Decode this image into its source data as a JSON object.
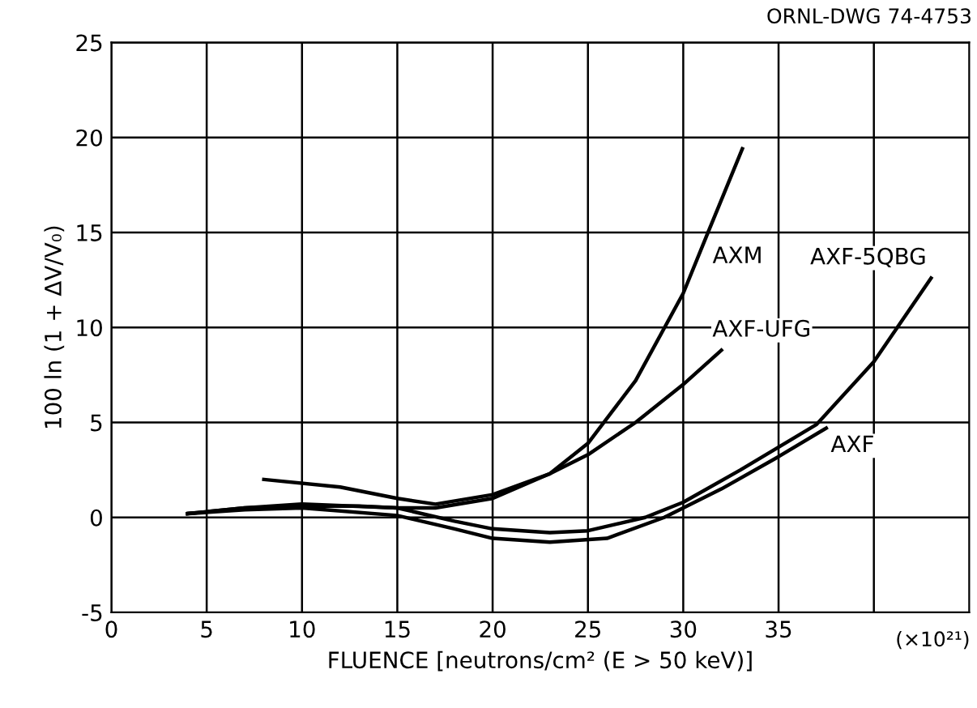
{
  "chart_data": {
    "type": "line",
    "xlabel": "FLUENCE [neutrons/cm² (E > 50 keV)]",
    "ylabel": "100 ln (1 + ΔV/V₀)",
    "xlim": [
      0,
      45
    ],
    "xticks": [
      0,
      5,
      10,
      15,
      20,
      25,
      30,
      35,
      {
        "value": 40,
        "label": null
      }
    ],
    "ylim": [
      -5,
      25
    ],
    "yticks": [
      -5,
      0,
      5,
      10,
      15,
      20,
      25
    ],
    "grid": true,
    "legend": false,
    "marker": "none",
    "line_style": "solid",
    "series": [
      {
        "color": "#000000",
        "x": [
          4,
          7,
          10,
          13,
          15,
          17,
          20,
          23,
          25,
          27.5,
          30,
          31.3,
          33.1
        ],
        "values": [
          0.2,
          0.5,
          0.6,
          0.6,
          0.5,
          0.5,
          1.0,
          2.3,
          3.9,
          7.2,
          11.8,
          15.0,
          19.4
        ]
      },
      {
        "color": "#000000",
        "x": [
          8,
          12,
          15,
          17,
          20,
          23,
          25,
          27.5,
          30,
          32
        ],
        "values": [
          2.0,
          1.6,
          1.0,
          0.7,
          1.2,
          2.3,
          3.3,
          5.0,
          7.0,
          8.8
        ]
      },
      {
        "color": "#000000",
        "x": [
          4,
          7,
          10,
          15,
          18,
          20,
          23,
          25,
          28,
          30,
          33,
          37,
          40,
          43
        ],
        "values": [
          0.2,
          0.5,
          0.7,
          0.5,
          -0.2,
          -0.6,
          -0.8,
          -0.7,
          0,
          0.8,
          2.5,
          4.9,
          8.2,
          12.6
        ]
      },
      {
        "color": "#000000",
        "x": [
          4,
          7,
          10,
          15,
          18,
          20,
          23,
          26,
          29,
          32,
          35,
          37.5
        ],
        "values": [
          0.2,
          0.4,
          0.5,
          0.1,
          -0.6,
          -1.1,
          -1.3,
          -1.1,
          0,
          1.5,
          3.2,
          4.7
        ]
      }
    ],
    "annotations": [
      {
        "text": "AXM",
        "x": 31.3,
        "y": 15.0
      },
      {
        "text": "AXF-UFG",
        "x": 32,
        "y": 8.8
      },
      {
        "text": "AXF-5QBG",
        "x": 43,
        "y": 12.6
      },
      {
        "text": "AXF",
        "x": 37.5,
        "y": 4.7
      },
      "ORNL-DWG 74-4753",
      "(×10²¹)"
    ]
  }
}
